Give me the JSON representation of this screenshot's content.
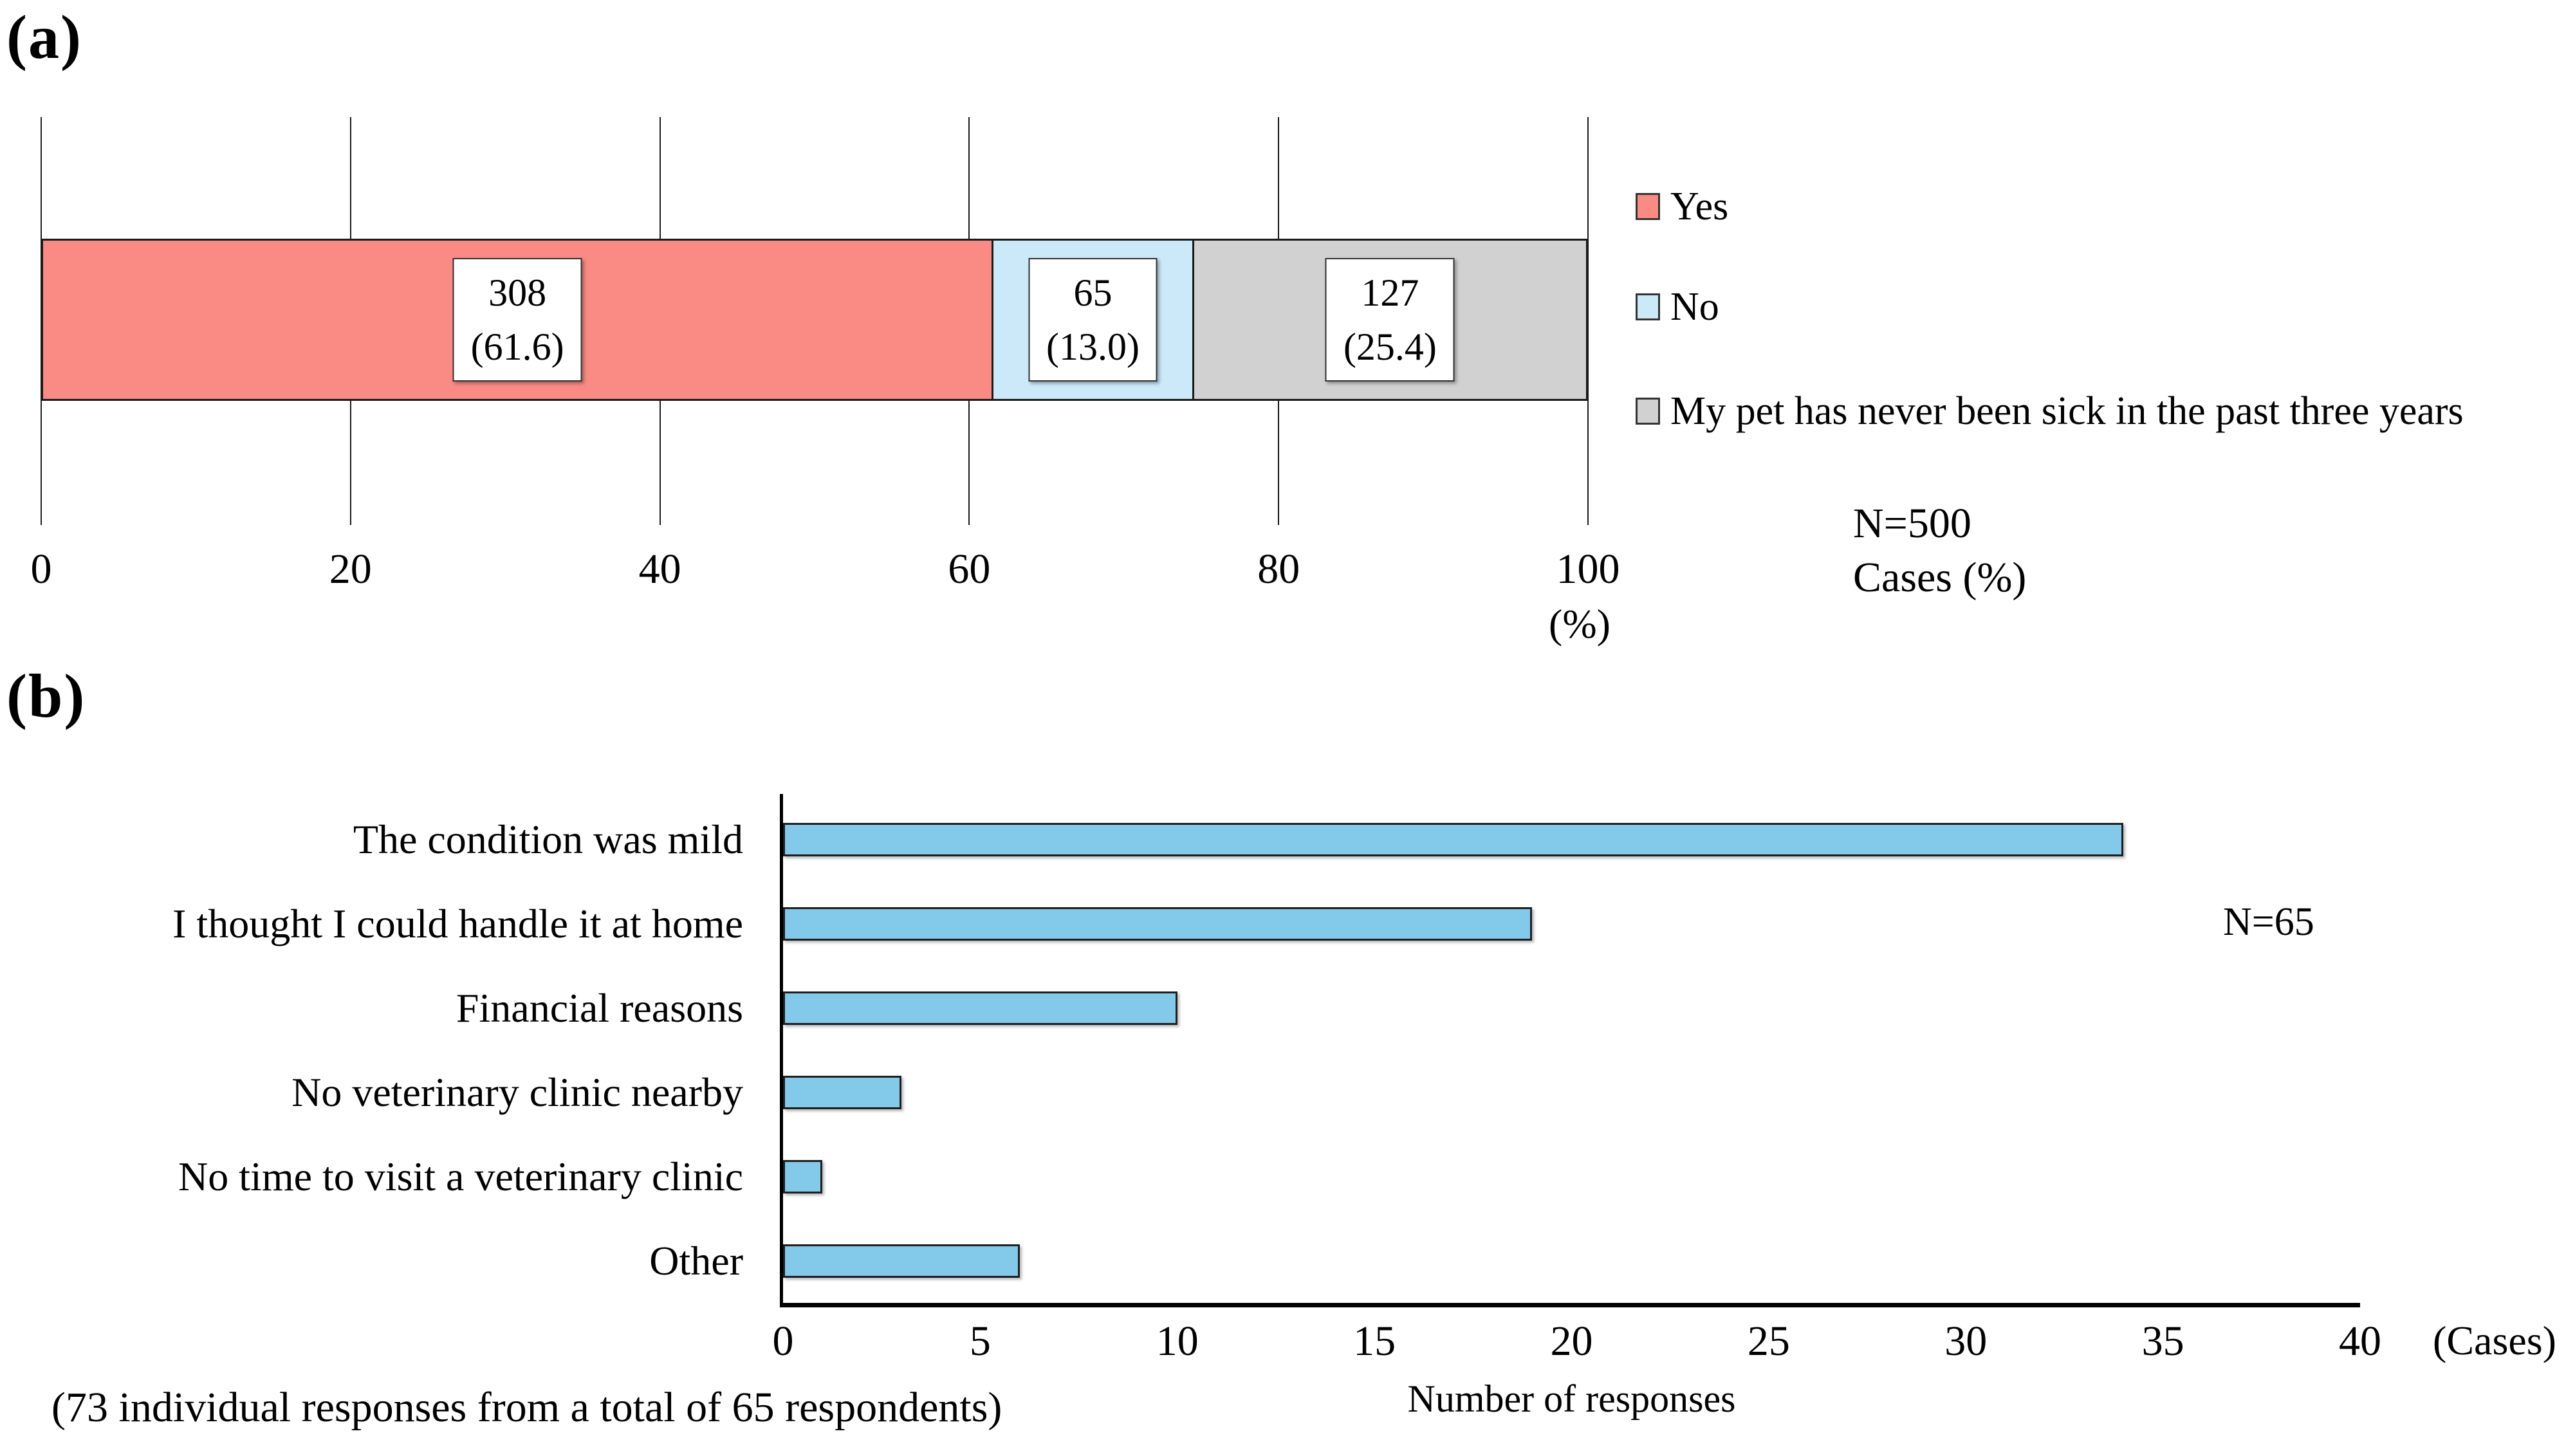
{
  "figure": {
    "panel_a": "(a)",
    "panel_b": "(b)"
  },
  "chart_data": [
    {
      "id": "a",
      "type": "bar",
      "subtype": "stacked-horizontal-100pct",
      "n_label": "N=500",
      "unit_note": "Cases (%)",
      "axis": {
        "min": 0,
        "max": 100,
        "ticks": [
          0,
          20,
          40,
          60,
          80,
          100
        ],
        "unit_label": "(%)"
      },
      "legend_position": "right",
      "segments": [
        {
          "label": "Yes",
          "count": 308,
          "percent": 61.6,
          "count_text": "308",
          "percent_text": "(61.6)",
          "color": "#F98B84"
        },
        {
          "label": "No",
          "count": 65,
          "percent": 13.0,
          "count_text": "65",
          "percent_text": "(13.0)",
          "color": "#CBE9F8"
        },
        {
          "label": "My pet has never been sick in the past three years",
          "count": 127,
          "percent": 25.4,
          "count_text": "127",
          "percent_text": "(25.4)",
          "color": "#D1D1D1"
        }
      ]
    },
    {
      "id": "b",
      "type": "bar",
      "subtype": "horizontal",
      "n_label": "N=65",
      "categories": [
        "The condition was mild",
        "I thought I could handle it at home",
        "Financial reasons",
        "No veterinary clinic nearby",
        "No time to visit a veterinary clinic",
        "Other"
      ],
      "values": [
        34,
        19,
        10,
        3,
        1,
        6
      ],
      "axis": {
        "min": 0,
        "max": 40,
        "ticks": [
          0,
          5,
          10,
          15,
          20,
          25,
          30,
          35,
          40
        ],
        "unit_label": "(Cases)"
      },
      "xlabel": "Number of responses",
      "footnote": "(73 individual responses from a total of 65 respondents)",
      "bar_color": "#83C9E9",
      "grid": false
    }
  ]
}
